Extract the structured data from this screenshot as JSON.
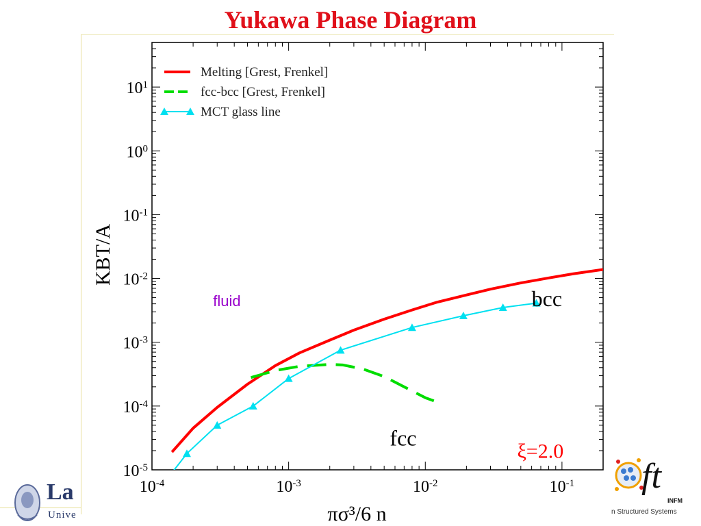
{
  "slide": {
    "title": "Yukawa Phase Diagram",
    "logo_left_text": "La",
    "logo_left_sub": "Unive",
    "logo_right_text": "ft",
    "logo_right_sub": "INFM",
    "logo_right_tag": "n Structured Systems"
  },
  "colors": {
    "title": "#e0101a",
    "melting": "#ff0000",
    "fccbcc": "#00dd00",
    "mct": "#00e0f0",
    "fluid_label": "#9900cc",
    "xi_label": "#ff0000"
  },
  "chart_data": {
    "type": "line",
    "xscale": "log",
    "yscale": "log",
    "xlim": [
      0.0001,
      0.2
    ],
    "ylim": [
      1e-05,
      50
    ],
    "grid": false,
    "legend_position": "top-left",
    "xlabel": "πσ³/6 n",
    "ylabel": "KBT/A",
    "x_ticks": [
      {
        "value": 0.0001,
        "base": "10",
        "exp": "-4"
      },
      {
        "value": 0.001,
        "base": "10",
        "exp": "-3"
      },
      {
        "value": 0.01,
        "base": "10",
        "exp": "-2"
      },
      {
        "value": 0.1,
        "base": "10",
        "exp": "-1"
      }
    ],
    "y_ticks": [
      {
        "value": 1e-05,
        "base": "10",
        "exp": "-5"
      },
      {
        "value": 0.0001,
        "base": "10",
        "exp": "-4"
      },
      {
        "value": 0.001,
        "base": "10",
        "exp": "-3"
      },
      {
        "value": 0.01,
        "base": "10",
        "exp": "-2"
      },
      {
        "value": 0.1,
        "base": "10",
        "exp": "-1"
      },
      {
        "value": 1,
        "base": "10",
        "exp": "0"
      },
      {
        "value": 10,
        "base": "10",
        "exp": "1"
      }
    ],
    "series": [
      {
        "name": "Melting  [Grest, Frenkel]",
        "style": "solid",
        "color": "#ff0000",
        "x": [
          0.00014,
          0.0002,
          0.0003,
          0.0005,
          0.0008,
          0.0012,
          0.002,
          0.003,
          0.005,
          0.008,
          0.012,
          0.02,
          0.03,
          0.05,
          0.08,
          0.12,
          0.2
        ],
        "y": [
          1.9e-05,
          4.5e-05,
          9.5e-05,
          0.00022,
          0.00043,
          0.00068,
          0.00108,
          0.00155,
          0.0023,
          0.0032,
          0.0042,
          0.0055,
          0.0068,
          0.0085,
          0.0102,
          0.0118,
          0.0138
        ]
      },
      {
        "name": "fcc-bcc   [Grest, Frenkel]",
        "style": "dashed",
        "color": "#00dd00",
        "x": [
          0.00053,
          0.0008,
          0.0012,
          0.002,
          0.0025,
          0.0035,
          0.005,
          0.007,
          0.01,
          0.013
        ],
        "y": [
          0.00028,
          0.00036,
          0.00042,
          0.00045,
          0.00044,
          0.00038,
          0.00029,
          0.0002,
          0.000135,
          0.00011
        ]
      },
      {
        "name": "MCT glass line",
        "style": "solid-triangle-markers",
        "color": "#00e0f0",
        "x": [
          0.00014,
          0.00018,
          0.0003,
          0.00055,
          0.001,
          0.0024,
          0.008,
          0.019,
          0.037,
          0.065
        ],
        "y": [
          9e-06,
          1.8e-05,
          5e-05,
          0.0001,
          0.00027,
          0.00075,
          0.0017,
          0.0026,
          0.0035,
          0.0041
        ],
        "markers_from_index": 1
      }
    ],
    "annotations": [
      {
        "text": "fluid",
        "x": 0.00028,
        "y": 0.0037,
        "color": "#9900cc",
        "size": 22,
        "font": "sans"
      },
      {
        "text": "bcc",
        "x": 0.06,
        "y": 0.0037,
        "color": "#000000",
        "size": 32,
        "font": "serif"
      },
      {
        "text": "fcc",
        "x": 0.0055,
        "y": 2.4e-05,
        "color": "#000000",
        "size": 32,
        "font": "serif"
      },
      {
        "text": "ξ=2.0",
        "x": 0.047,
        "y": 1.55e-05,
        "color": "#ff0000",
        "size": 30,
        "font": "serif"
      }
    ]
  }
}
